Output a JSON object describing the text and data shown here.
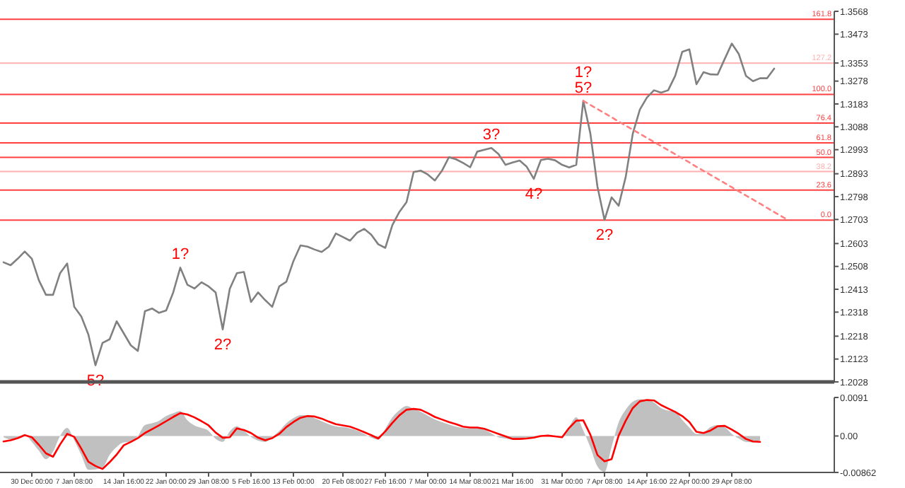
{
  "chart_data": [
    {
      "type": "line",
      "ylim": [
        1.2028,
        1.3568
      ],
      "tick_labels": "y",
      "categories": [
        null,
        null,
        null,
        null,
        null,
        null,
        null,
        null,
        null,
        null,
        null,
        null,
        null,
        null,
        null,
        null,
        null,
        null,
        null,
        null,
        null,
        null,
        null,
        null,
        null,
        null,
        null,
        null,
        null,
        null,
        null,
        null,
        null,
        null,
        null,
        null,
        null,
        null,
        null,
        null,
        null,
        null,
        null,
        null,
        null,
        null,
        null,
        null,
        null,
        null,
        null,
        null,
        null,
        null,
        null,
        null,
        null,
        null,
        null,
        null,
        null,
        null,
        null,
        null,
        null,
        null,
        null,
        null,
        null,
        null,
        null,
        null,
        null,
        null,
        null,
        null,
        null,
        null,
        null,
        null,
        null,
        null,
        null,
        null,
        null,
        null,
        null,
        null,
        null,
        null,
        null,
        null,
        null,
        null,
        null,
        null,
        null,
        null,
        null,
        null,
        null,
        null,
        null,
        null,
        null,
        null,
        null,
        null,
        null,
        null,
        null,
        null,
        null,
        null,
        null,
        null,
        null,
        null
      ],
      "yticks": [
        1.3568,
        1.3473,
        {
          "value": 1.3353,
          "label": "1.3353"
        },
        1.3278,
        1.3183,
        1.3088,
        1.2993,
        1.2893,
        1.2798,
        1.2703,
        1.2603,
        1.2508,
        1.2413,
        1.2318,
        1.2218,
        1.2123,
        1.2028
      ],
      "series": [
        {
          "color": "#808080",
          "line_style": "solid",
          "values": [
            1.2525,
            1.2513,
            1.254,
            1.257,
            1.254,
            1.245,
            1.239,
            1.239,
            1.248,
            1.252,
            1.234,
            1.23,
            1.2225,
            1.2097,
            1.219,
            1.2205,
            1.228,
            1.223,
            1.218,
            1.2157,
            1.2322,
            1.2333,
            1.2315,
            1.2325,
            1.24,
            1.2503,
            1.2432,
            1.2416,
            1.2442,
            1.2425,
            1.24,
            1.2246,
            1.2415,
            1.248,
            1.2485,
            1.236,
            1.24,
            1.2368,
            1.234,
            1.2425,
            1.2444,
            1.253,
            1.2595,
            1.259,
            1.2578,
            1.2568,
            1.259,
            1.2645,
            1.263,
            1.2615,
            1.2648,
            1.2664,
            1.264,
            1.26,
            1.2585,
            1.268,
            1.2735,
            1.2775,
            1.29,
            1.2906,
            1.289,
            1.2865,
            1.2905,
            1.2962,
            1.2953,
            1.2938,
            1.292,
            1.2985,
            1.2993,
            1.3,
            1.2975,
            1.293,
            1.294,
            1.2948,
            1.2922,
            1.2872,
            1.295,
            1.2955,
            1.2949,
            1.293,
            1.2919,
            1.293,
            1.3196,
            1.306,
            1.284,
            1.2701,
            1.2795,
            1.276,
            1.288,
            1.306,
            1.316,
            1.321,
            1.324,
            1.323,
            1.324,
            1.33,
            1.34,
            1.341,
            1.3265,
            1.3315,
            1.3306,
            1.3305,
            1.337,
            1.3434,
            1.339,
            1.33,
            1.3278,
            1.329,
            1.329,
            1.333,
            null,
            null,
            null,
            null,
            null,
            null,
            null,
            null
          ]
        },
        {
          "color": "#ff8080",
          "line_style": "dashed",
          "values": [
            null,
            null,
            null,
            null,
            null,
            null,
            null,
            null,
            null,
            null,
            null,
            null,
            null,
            null,
            null,
            null,
            null,
            null,
            null,
            null,
            null,
            null,
            null,
            null,
            null,
            null,
            null,
            null,
            null,
            null,
            null,
            null,
            null,
            null,
            null,
            null,
            null,
            null,
            null,
            null,
            null,
            null,
            null,
            null,
            null,
            null,
            null,
            null,
            null,
            null,
            null,
            null,
            null,
            null,
            null,
            null,
            null,
            null,
            null,
            null,
            null,
            null,
            null,
            null,
            null,
            null,
            null,
            null,
            null,
            null,
            null,
            null,
            null,
            null,
            null,
            null,
            null,
            null,
            null,
            null,
            null,
            null,
            1.3196,
            1.3179,
            1.3162,
            1.3145,
            1.3128,
            1.311,
            1.3093,
            1.3076,
            1.3059,
            1.3042,
            1.3025,
            1.3008,
            1.2991,
            1.2974,
            1.2957,
            1.294,
            1.2922,
            1.2905,
            1.2888,
            1.2871,
            1.2854,
            1.2837,
            1.282,
            1.2803,
            1.2786,
            1.2769,
            1.2751,
            1.2734,
            1.2717,
            1.27,
            null,
            null,
            null,
            null,
            null,
            null
          ]
        }
      ],
      "ref_lines": [
        {
          "axis": "y",
          "value": 1.3535,
          "color": "#ff4040"
        },
        {
          "axis": "y",
          "value": 1.3353,
          "color": "#ffb0b0"
        },
        {
          "axis": "y",
          "value": 1.3223,
          "color": "#ff4040"
        },
        {
          "axis": "y",
          "value": 1.3104,
          "color": "#ff4040"
        },
        {
          "axis": "y",
          "value": 1.3021,
          "color": "#ff4040"
        },
        {
          "axis": "y",
          "value": 1.2961,
          "color": "#ff4040"
        },
        {
          "axis": "y",
          "value": 1.2902,
          "color": "#ffb0b0"
        },
        {
          "axis": "y",
          "value": 1.2825,
          "color": "#ff4040"
        },
        {
          "axis": "y",
          "value": 1.27,
          "color": "#ff4040"
        }
      ],
      "annotations": [
        {
          "text": "161.8",
          "y": 1.3535
        },
        {
          "text": "127.2",
          "y": 1.3353
        },
        {
          "text": "100.0",
          "y": 1.3223
        },
        {
          "text": "76.4",
          "y": 1.3104
        },
        {
          "text": "61.8",
          "y": 1.3021
        },
        {
          "text": "50.0",
          "y": 1.2961
        },
        {
          "text": "38.2",
          "y": 1.2902
        },
        {
          "text": "23.6",
          "y": 1.2825
        },
        {
          "text": "0.0",
          "y": 1.27
        },
        {
          "text": "5?",
          "y": 1.2097
        },
        {
          "text": "1?",
          "y": 1.2503
        },
        {
          "text": "2?",
          "y": 1.2246
        },
        {
          "text": "3?",
          "y": 1.3
        },
        {
          "text": "4?",
          "y": 1.2872
        },
        {
          "text": "5?",
          "y": 1.3196
        },
        {
          "text": "1?",
          "y": 1.3196
        },
        {
          "text": "2?",
          "y": 1.2701
        }
      ]
    },
    {
      "type": "area",
      "ylim": [
        -0.00862,
        0.0091
      ],
      "categories": [
        null,
        null,
        null,
        null,
        "30 Dec 00:00",
        null,
        null,
        null,
        null,
        null,
        "7 Jan 08:00",
        null,
        null,
        null,
        null,
        null,
        null,
        "14 Jan 16:00",
        null,
        null,
        null,
        null,
        null,
        "22 Jan 00:00",
        null,
        null,
        null,
        null,
        null,
        "29 Jan 08:00",
        null,
        null,
        null,
        null,
        null,
        "5 Feb 16:00",
        null,
        null,
        null,
        null,
        null,
        "13 Feb 00:00",
        null,
        null,
        null,
        null,
        null,
        null,
        "20 Feb 08:00",
        null,
        null,
        null,
        null,
        null,
        "27 Feb 16:00",
        null,
        null,
        null,
        null,
        null,
        "7 Mar 00:00",
        null,
        null,
        null,
        null,
        null,
        "14 Mar 08:00",
        null,
        null,
        null,
        null,
        null,
        "21 Mar 16:00",
        null,
        null,
        null,
        null,
        null,
        null,
        "31 Mar 00:00",
        null,
        null,
        null,
        null,
        null,
        "7 Apr 08:00",
        null,
        null,
        null,
        null,
        null,
        "14 Apr 16:00",
        null,
        null,
        null,
        null,
        null,
        "22 Apr 00:00",
        null,
        null,
        null,
        null,
        null,
        "29 Apr 08:00",
        null,
        null,
        null,
        null,
        null,
        null,
        null,
        null,
        null,
        null,
        null,
        null,
        null,
        null
      ],
      "yticks": [
        0.0091,
        {
          "value": 0,
          "label": "0.00"
        },
        -0.00862
      ],
      "series": [
        {
          "color": "#c0c0c0",
          "values": [
            -0.0003,
            -0.0008,
            -0.0005,
            0.0004,
            -0.0014,
            -0.0035,
            -0.0055,
            -0.0037,
            0.0,
            0.0019,
            -0.001,
            -0.0045,
            -0.008,
            -0.0079,
            -0.0075,
            -0.0045,
            -0.0026,
            -0.0015,
            -0.0014,
            0.0,
            0.0026,
            0.003,
            0.0036,
            0.0047,
            0.0054,
            0.0059,
            0.0037,
            0.0025,
            0.0019,
            0.0012,
            -0.0007,
            -0.0014,
            0.0011,
            0.0023,
            0.0012,
            -0.0002,
            -0.0011,
            -0.0014,
            -0.0002,
            0.0012,
            0.003,
            0.0042,
            0.0049,
            0.0049,
            0.0042,
            0.0035,
            0.0028,
            0.0023,
            0.0021,
            0.0018,
            0.0013,
            0.0005,
            -0.0004,
            -0.0009,
            0.0017,
            0.0044,
            0.0061,
            0.0071,
            0.0064,
            0.0057,
            0.0048,
            0.0039,
            0.0033,
            0.0027,
            0.0022,
            0.0019,
            0.0018,
            0.0019,
            0.0015,
            0.0006,
            -0.0003,
            -0.0006,
            -0.0009,
            -0.0008,
            -0.0005,
            -0.0002,
            0.0001,
            0.0002,
            0.0,
            -0.0003,
            0.0022,
            0.0044,
            0.0013,
            -0.0027,
            -0.0072,
            -0.0085,
            -0.0026,
            0.0032,
            0.0062,
            0.0081,
            0.0087,
            0.0085,
            0.0079,
            0.0066,
            0.006,
            0.0058,
            0.0038,
            0.002,
            0.0005,
            0.0008,
            0.0021,
            0.0026,
            0.0021,
            0.0005,
            -0.0006,
            -0.0014,
            -0.0015,
            -0.001,
            null,
            null,
            null,
            null,
            null,
            null,
            null,
            null,
            null,
            null
          ]
        },
        {
          "type": "line",
          "color": "#ff0000",
          "values": [
            -0.0013,
            -0.001,
            -0.0005,
            0.0002,
            -0.0003,
            -0.0021,
            -0.0041,
            -0.0049,
            -0.002,
            0.0005,
            -0.0002,
            -0.003,
            -0.0061,
            -0.0071,
            -0.0078,
            -0.0062,
            -0.0044,
            -0.0022,
            -0.0014,
            -0.0005,
            0.0007,
            0.0016,
            0.0025,
            0.0035,
            0.0045,
            0.0054,
            0.0051,
            0.0044,
            0.0035,
            0.0025,
            0.0008,
            -0.0004,
            -0.0003,
            0.0018,
            0.0014,
            0.0007,
            -0.0004,
            -0.001,
            -0.0005,
            0.0005,
            0.0021,
            0.0033,
            0.0043,
            0.0047,
            0.0046,
            0.0041,
            0.0034,
            0.0028,
            0.0025,
            0.0022,
            0.0016,
            0.0009,
            0.0002,
            -0.0006,
            0.0011,
            0.0031,
            0.0049,
            0.0062,
            0.0064,
            0.0062,
            0.0054,
            0.0045,
            0.0039,
            0.0033,
            0.0028,
            0.0022,
            0.002,
            0.002,
            0.0017,
            0.0011,
            0.0005,
            -0.0001,
            -0.0007,
            -0.0007,
            -0.0006,
            -0.0004,
            0,
            0.0001,
            -0.0001,
            -0.0003,
            0.0019,
            0.0036,
            0.0037,
            0.0003,
            -0.0045,
            -0.006,
            -0.0055,
            0.0001,
            0.0036,
            0.0066,
            0.0082,
            0.0085,
            0.0084,
            0.0073,
            0.0065,
            0.0057,
            0.0047,
            0.0033,
            0.001,
            0.0007,
            0.0013,
            0.0023,
            0.0024,
            0.0015,
            0.0005,
            -0.0007,
            -0.0013,
            -0.0014,
            null,
            null,
            null,
            null,
            null,
            null,
            null,
            null,
            null,
            null
          ]
        }
      ]
    }
  ]
}
